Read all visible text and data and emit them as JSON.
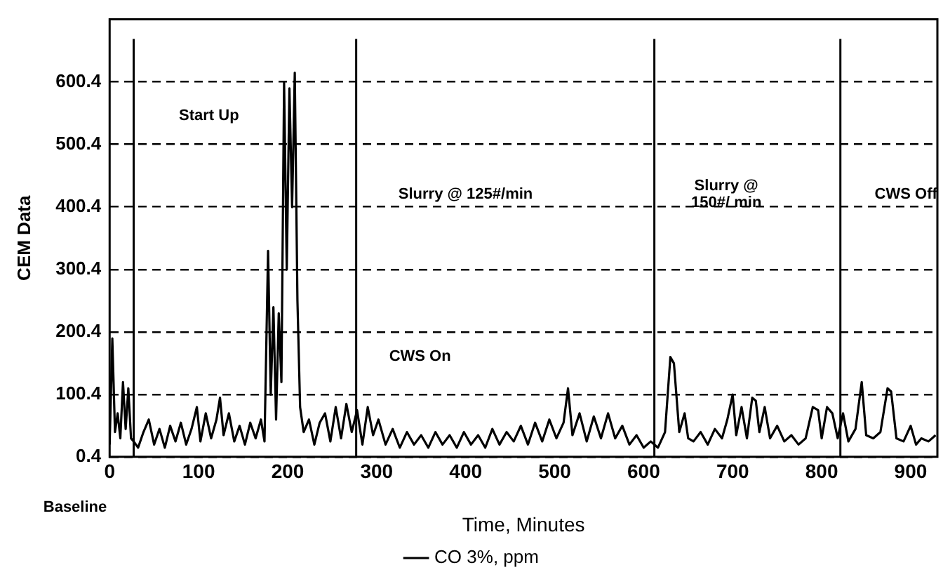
{
  "chart_data": {
    "type": "line",
    "xlabel": "Time, Minutes",
    "ylabel": "CEM Data",
    "x": [
      0,
      3,
      6,
      9,
      12,
      15,
      18,
      21,
      24,
      27,
      32,
      38,
      44,
      50,
      56,
      62,
      68,
      74,
      80,
      86,
      92,
      98,
      102,
      108,
      114,
      120,
      124,
      128,
      134,
      140,
      146,
      152,
      158,
      164,
      170,
      174,
      178,
      181,
      184,
      187,
      190,
      193,
      196,
      199,
      202,
      205,
      208,
      211,
      214,
      218,
      224,
      230,
      236,
      242,
      248,
      254,
      260,
      266,
      272,
      278,
      284,
      290,
      296,
      302,
      310,
      318,
      326,
      334,
      342,
      350,
      358,
      366,
      374,
      382,
      390,
      398,
      406,
      414,
      422,
      430,
      438,
      446,
      454,
      462,
      470,
      478,
      486,
      494,
      502,
      510,
      515,
      520,
      528,
      536,
      544,
      552,
      560,
      568,
      576,
      584,
      592,
      600,
      608,
      616,
      624,
      630,
      634,
      640,
      646,
      650,
      656,
      664,
      672,
      680,
      688,
      694,
      700,
      704,
      710,
      716,
      722,
      726,
      730,
      736,
      742,
      750,
      758,
      766,
      774,
      782,
      790,
      796,
      800,
      806,
      812,
      818,
      824,
      830,
      838,
      845,
      850,
      858,
      866,
      874,
      878,
      884,
      892,
      900,
      906,
      912,
      920,
      928
    ],
    "series": [
      {
        "name": "CO 3%, ppm",
        "color": "#000000",
        "values": [
          20,
          190,
          40,
          70,
          30,
          120,
          45,
          110,
          30,
          25,
          15,
          40,
          60,
          20,
          45,
          15,
          50,
          25,
          55,
          20,
          45,
          80,
          25,
          70,
          30,
          60,
          95,
          35,
          70,
          25,
          50,
          20,
          55,
          30,
          60,
          25,
          330,
          100,
          240,
          60,
          230,
          120,
          600,
          300,
          590,
          400,
          615,
          250,
          80,
          40,
          60,
          20,
          55,
          70,
          25,
          80,
          30,
          85,
          40,
          75,
          20,
          80,
          35,
          60,
          20,
          45,
          15,
          40,
          20,
          35,
          15,
          40,
          20,
          35,
          15,
          40,
          20,
          35,
          15,
          45,
          20,
          40,
          25,
          50,
          20,
          55,
          25,
          60,
          30,
          55,
          110,
          35,
          70,
          25,
          65,
          30,
          70,
          30,
          50,
          20,
          35,
          15,
          25,
          15,
          40,
          160,
          150,
          40,
          70,
          30,
          25,
          40,
          20,
          45,
          30,
          60,
          100,
          35,
          80,
          30,
          95,
          90,
          40,
          80,
          30,
          50,
          25,
          35,
          20,
          30,
          80,
          75,
          30,
          80,
          70,
          30,
          70,
          25,
          45,
          120,
          35,
          30,
          40,
          110,
          105,
          30,
          25,
          50,
          20,
          30,
          25,
          35
        ]
      }
    ],
    "xlim": [
      0,
      930
    ],
    "xticks": [
      0,
      100,
      200,
      300,
      400,
      500,
      600,
      700,
      800,
      900
    ],
    "ylim": [
      0.4,
      700.4
    ],
    "yticks": [
      0.4,
      100.4,
      200.4,
      300.4,
      400.4,
      500.4,
      600.4
    ],
    "grid": "y",
    "legend": "bottom",
    "marker": "none",
    "line_style": "solid",
    "ref_lines": [
      {
        "axis": "x",
        "value": 27,
        "color": "#000000",
        "line_style": "solid"
      },
      {
        "axis": "x",
        "value": 277,
        "color": "#000000",
        "line_style": "solid"
      },
      {
        "axis": "x",
        "value": 612,
        "color": "#000000",
        "line_style": "solid"
      },
      {
        "axis": "x",
        "value": 821,
        "color": "#000000",
        "line_style": "solid"
      }
    ],
    "annotations": [
      "Start Up",
      "Slurry @ 125#/min",
      "CWS On",
      "Slurry @\n150#/ min",
      "CWS Off",
      "Baseline"
    ]
  }
}
